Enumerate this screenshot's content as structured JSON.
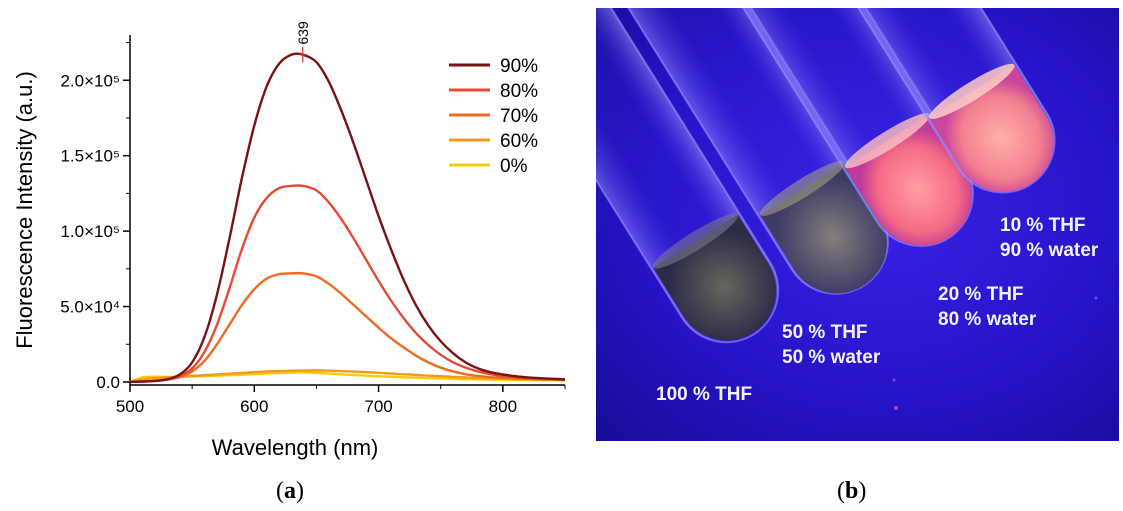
{
  "chart_data": {
    "type": "line",
    "xlabel": "Wavelength (nm)",
    "ylabel": "Fluorescence Intensity (a.u.)",
    "xlim": [
      500,
      850
    ],
    "ylim": [
      -2000,
      230000
    ],
    "xticks": [
      "500",
      "600",
      "700",
      "800"
    ],
    "xtick_values": [
      500,
      600,
      700,
      800
    ],
    "yticks": [
      "0.0",
      "5.0×10⁴",
      "1.0×10⁵",
      "1.5×10⁵",
      "2.0×10⁵"
    ],
    "ytick_values": [
      0,
      50000,
      100000,
      150000,
      200000
    ],
    "legend_position": "top-right",
    "peak_annotation": {
      "label": "639",
      "x": 639,
      "y": 217000
    },
    "x": [
      500,
      510,
      520,
      530,
      540,
      550,
      560,
      570,
      580,
      590,
      600,
      610,
      620,
      630,
      639,
      650,
      660,
      670,
      680,
      690,
      700,
      710,
      720,
      730,
      740,
      750,
      760,
      770,
      780,
      790,
      800,
      810,
      820,
      830,
      840,
      850
    ],
    "series": [
      {
        "name": "90%",
        "color": "#7a1212",
        "values": [
          0,
          300,
          700,
          1800,
          5000,
          13000,
          30000,
          58000,
          95000,
          135000,
          170000,
          196000,
          211000,
          217000,
          217000,
          212000,
          199000,
          180000,
          158000,
          134000,
          110000,
          88000,
          68000,
          51000,
          37500,
          27000,
          19000,
          13000,
          9000,
          6500,
          5000,
          3800,
          3000,
          2500,
          2100,
          1800
        ]
      },
      {
        "name": "80%",
        "color": "#e64a33",
        "values": [
          0,
          300,
          700,
          1600,
          3800,
          9000,
          20000,
          38000,
          62000,
          88000,
          109000,
          122000,
          128500,
          130000,
          130000,
          127000,
          119000,
          108000,
          95000,
          81000,
          67000,
          54000,
          42500,
          32500,
          24500,
          18000,
          13000,
          9500,
          7000,
          5200,
          4000,
          3200,
          2600,
          2200,
          1900,
          1600
        ]
      },
      {
        "name": "70%",
        "color": "#ee6a22",
        "values": [
          0,
          400,
          800,
          1600,
          3200,
          7000,
          14000,
          25000,
          38000,
          51000,
          61500,
          68500,
          71500,
          72000,
          72000,
          70000,
          65000,
          58500,
          51000,
          43500,
          36000,
          29000,
          23000,
          17500,
          13000,
          9500,
          7000,
          5200,
          4000,
          3200,
          2700,
          2300,
          2000,
          1800,
          1600,
          1500
        ]
      },
      {
        "name": "60%",
        "color": "#f39a1a",
        "values": [
          0,
          1500,
          2500,
          3000,
          3500,
          4000,
          4500,
          5000,
          5500,
          6000,
          6500,
          7000,
          7200,
          7500,
          7600,
          7700,
          7500,
          7200,
          6900,
          6500,
          6100,
          5600,
          5100,
          4700,
          4200,
          3800,
          3400,
          3000,
          2700,
          2400,
          2200,
          2000,
          1800,
          1700,
          1600,
          1500
        ]
      },
      {
        "name": "0%",
        "color": "#f7cc10",
        "values": [
          0,
          3000,
          3500,
          3300,
          3400,
          3600,
          3900,
          4200,
          4500,
          4800,
          5200,
          5600,
          6000,
          6200,
          6300,
          6000,
          5600,
          5100,
          4600,
          4200,
          3800,
          3400,
          3100,
          2800,
          2500,
          2300,
          2100,
          1900,
          1700,
          1600,
          1500,
          1400,
          1300,
          1200,
          1100,
          1000
        ]
      }
    ]
  },
  "photo": {
    "labels": [
      {
        "line1": "100 % THF",
        "line2": ""
      },
      {
        "line1": "50 % THF",
        "line2": "50 % water"
      },
      {
        "line1": "20 % THF",
        "line2": "80 % water"
      },
      {
        "line1": "10 % THF",
        "line2": "90 % water"
      }
    ]
  },
  "captions": {
    "a": "a",
    "b": "b"
  }
}
